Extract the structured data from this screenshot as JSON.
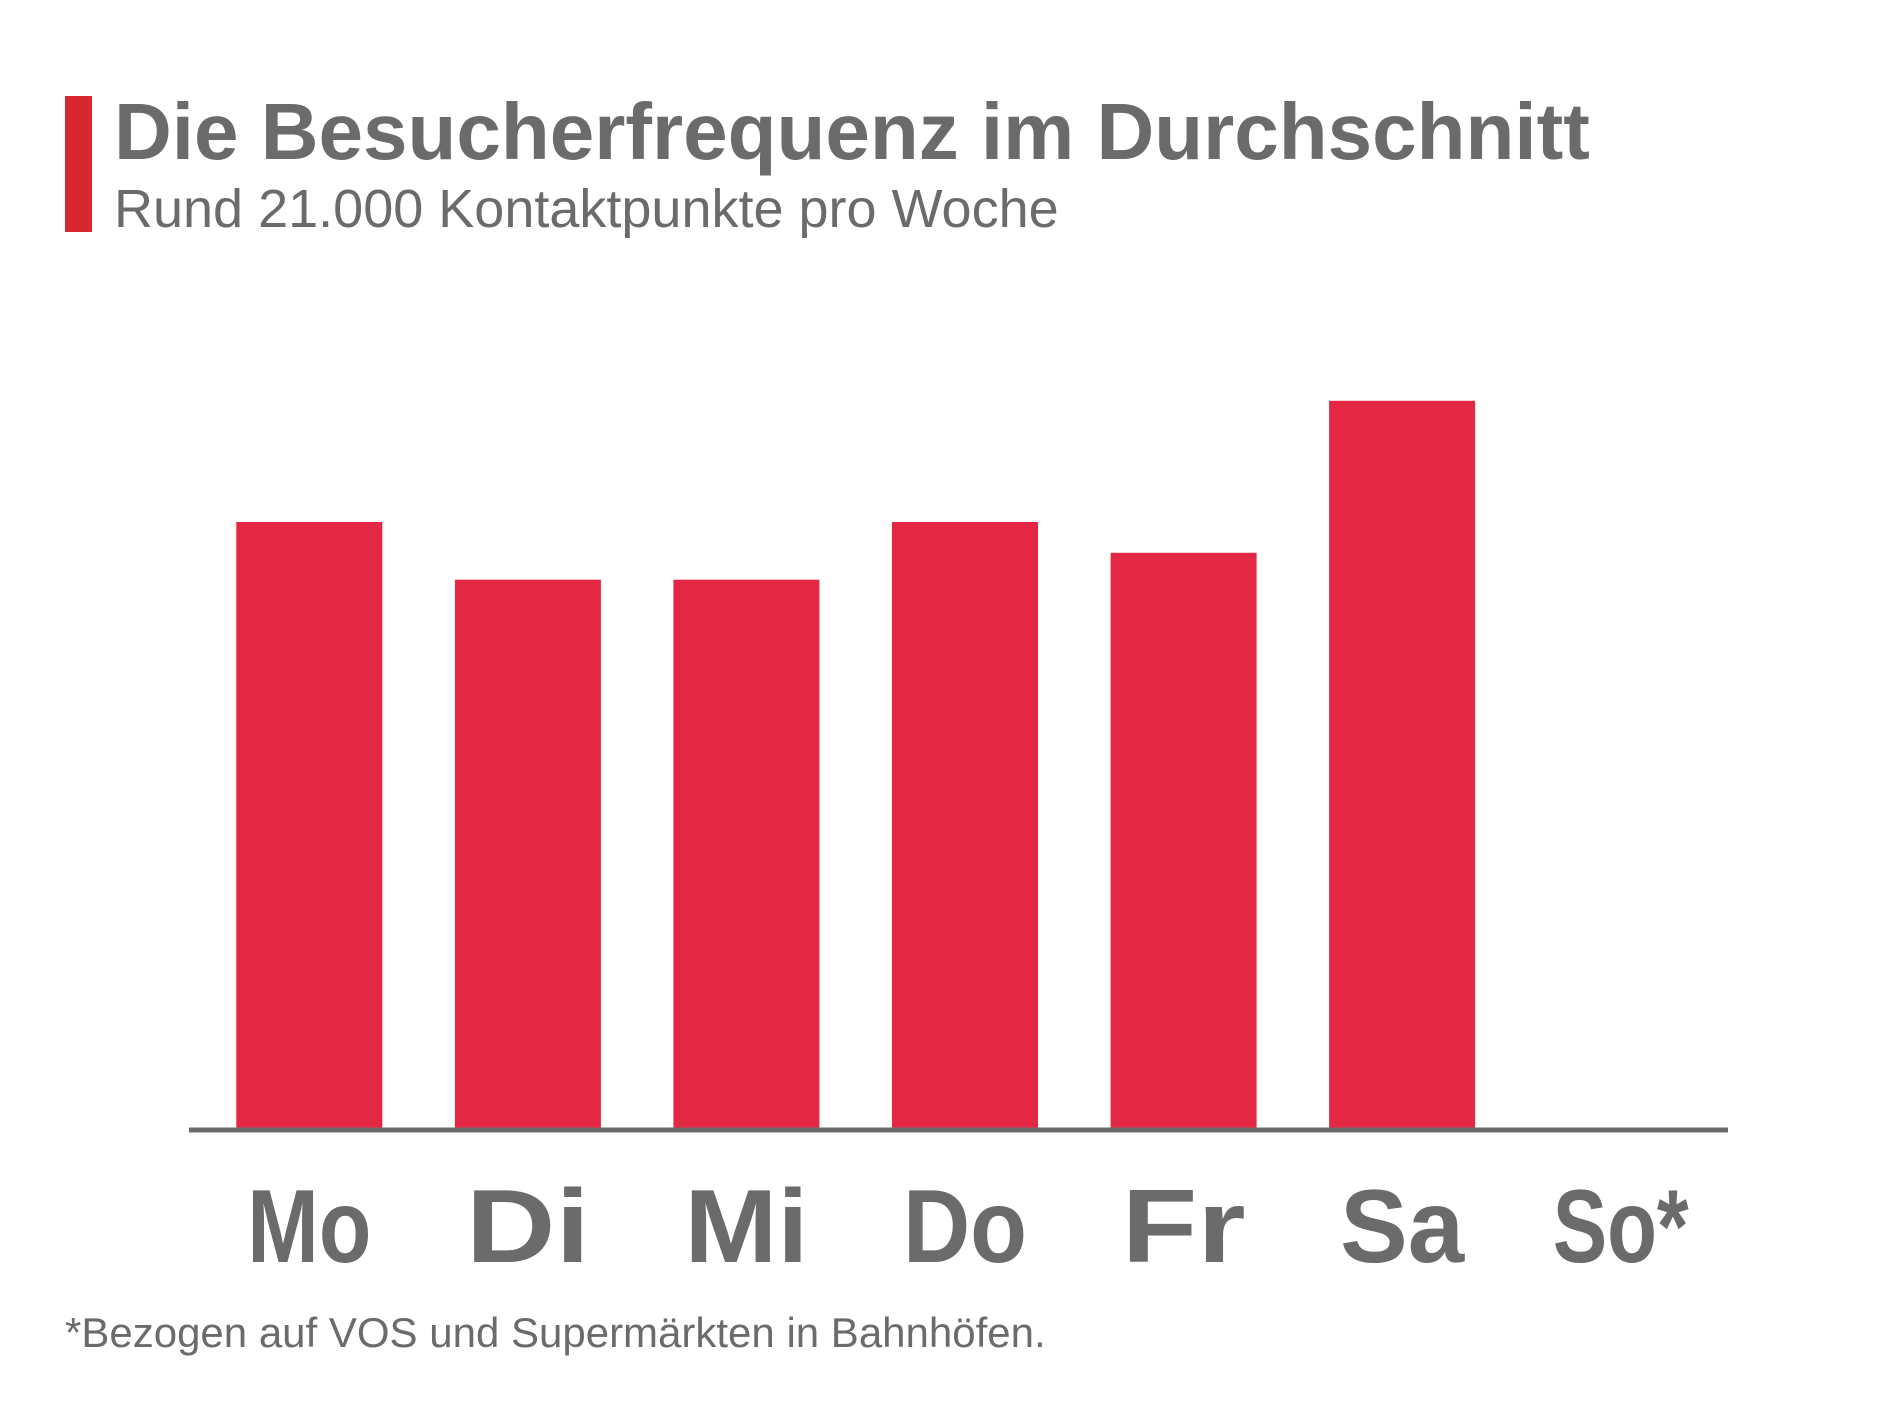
{
  "header": {
    "title": "Die Besucherfrequenz im Durchschnitt",
    "subtitle": "Rund 21.000 Kontaktpunkte pro Woche"
  },
  "footnote": "*Bezogen auf VOS und Supermärkten in Bahnhöfen.",
  "colors": {
    "accent": "#d7282f",
    "bar": "#e42843",
    "axis": "#6b6b6b",
    "text": "#6b6b6b"
  },
  "chart_data": {
    "type": "bar",
    "title": "Die Besucherfrequenz im Durchschnitt",
    "subtitle": "Rund 21.000 Kontaktpunkte pro Woche",
    "categories": [
      "Mo",
      "Di",
      "Mi",
      "Do",
      "Fr",
      "Sa",
      "So*"
    ],
    "values": [
      3150,
      2850,
      2850,
      3150,
      2990,
      3780,
      0
    ],
    "xlabel": "",
    "ylabel": "",
    "ylim": [
      0,
      4200
    ],
    "grid": false,
    "legend": "none",
    "value_labels": false
  }
}
